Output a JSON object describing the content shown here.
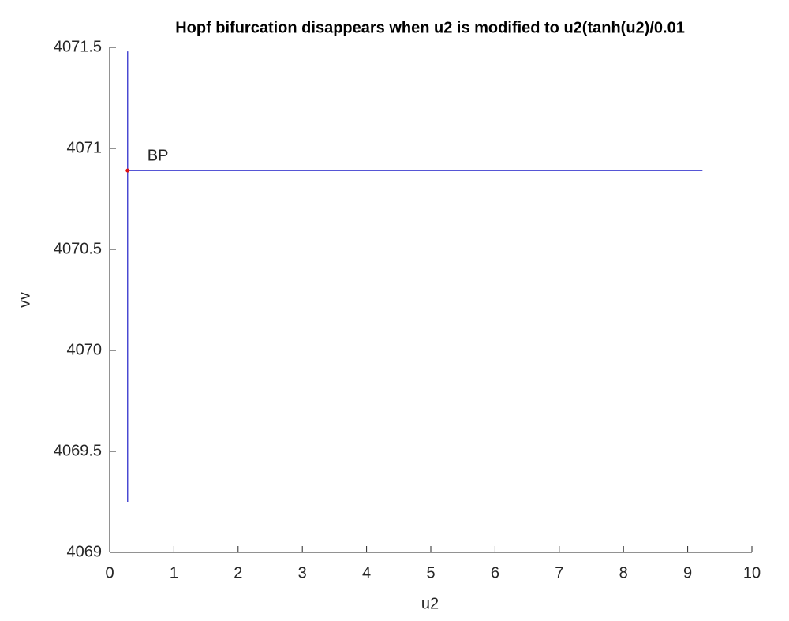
{
  "chart_data": {
    "type": "line",
    "title": "Hopf bifurcation disappears when u2 is modified to u2(tanh(u2)/0.01",
    "x_label": "u2",
    "y_label": "vv",
    "xlim": [
      0,
      10
    ],
    "ylim": [
      4069,
      4071.5
    ],
    "xticks": [
      0,
      1,
      2,
      3,
      4,
      5,
      6,
      7,
      8,
      9,
      10
    ],
    "yticks": [
      4069,
      4069.5,
      4070,
      4070.5,
      4071,
      4071.5
    ],
    "series": [
      {
        "color": "#1f1fc8",
        "x": [
          0.28,
          0.28
        ],
        "values": [
          4069.25,
          4071.48
        ]
      },
      {
        "color": "#1f1fc8",
        "x": [
          0.28,
          9.23
        ],
        "values": [
          4070.89,
          4070.89
        ]
      }
    ],
    "points": [
      {
        "x": 0.28,
        "y": 4070.89,
        "label": "BP",
        "color": "#e01010"
      }
    ]
  }
}
